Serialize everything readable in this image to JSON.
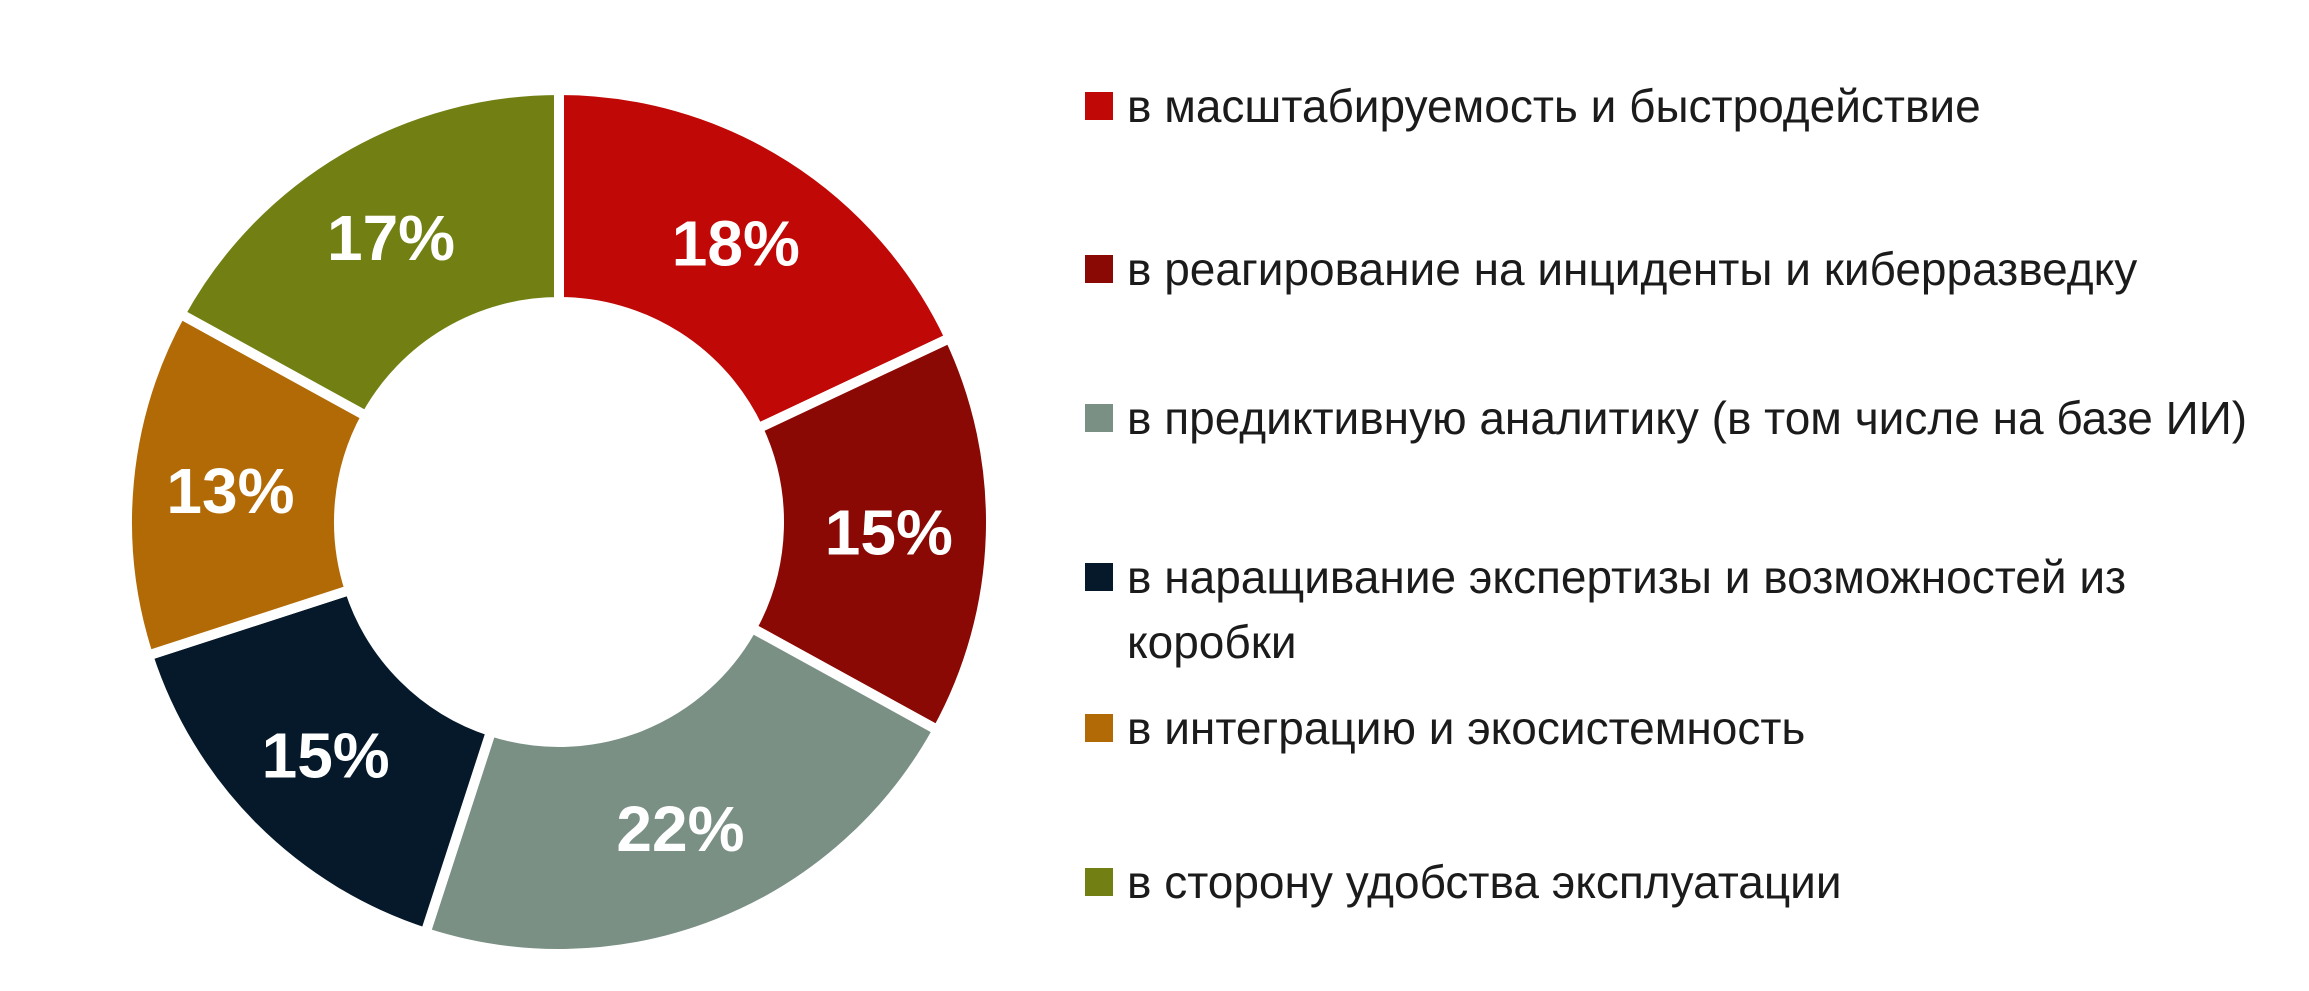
{
  "chart_data": {
    "type": "pie",
    "variant": "donut",
    "title": "",
    "legend_position": "right",
    "start_angle_deg": 0,
    "direction": "clockwise",
    "donut_hole_ratio": 0.51,
    "background_color": "#ffffff",
    "separator_color": "#ffffff",
    "data_label_color": "#ffffff",
    "series": [
      {
        "label": "в масштабируемость и быстродействие",
        "value": 18,
        "data_label": "18%",
        "color": "#c00806"
      },
      {
        "label": "в реагирование на инциденты и киберразведку",
        "value": 15,
        "data_label": "15%",
        "color": "#8b0904"
      },
      {
        "label": "в предиктивную аналитику (в том числе на базе ИИ)",
        "value": 22,
        "data_label": "22%",
        "color": "#7a9085"
      },
      {
        "label": "в наращивание экспертизы и возможностей из\nкоробки",
        "value": 15,
        "data_label": "15%",
        "color": "#05192b"
      },
      {
        "label": "в интеграцию и экосистемность",
        "value": 13,
        "data_label": "13%",
        "color": "#b26a06"
      },
      {
        "label": "в сторону удобства эксплуатации",
        "value": 17,
        "data_label": "17%",
        "color": "#728013"
      }
    ]
  }
}
